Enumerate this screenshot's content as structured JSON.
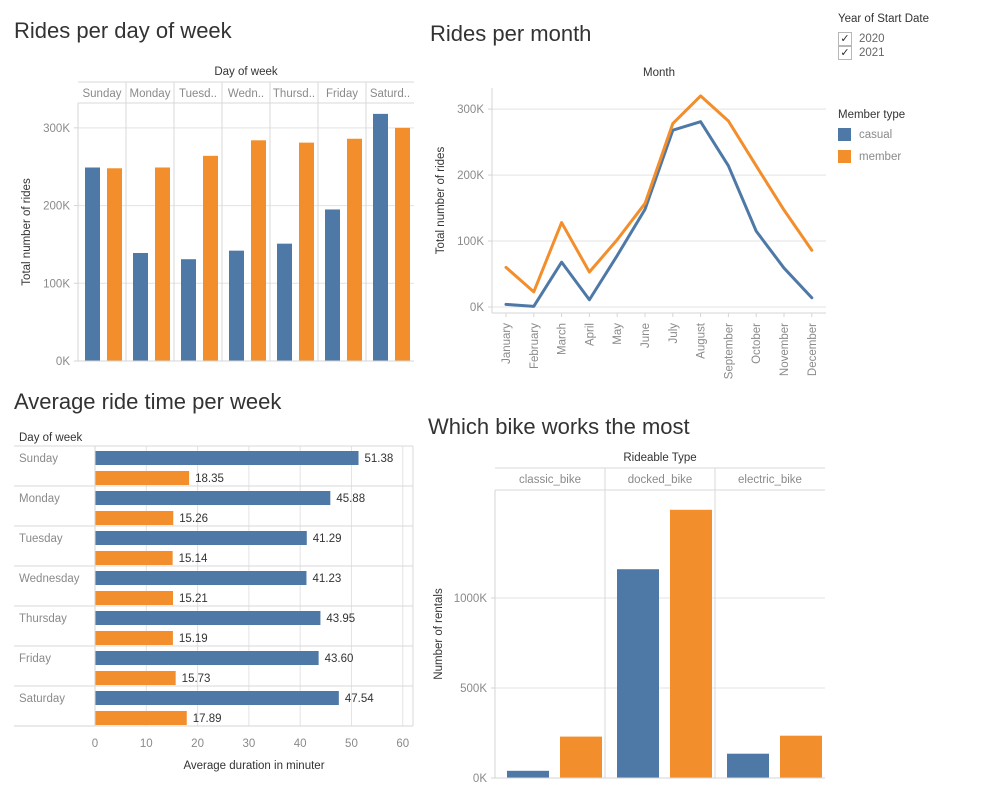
{
  "colors": {
    "casual": "#4e79a7",
    "member": "#f28e2b",
    "title_text": "#333333",
    "field_label": "#333333",
    "axis_text": "#8a8a8a",
    "value_label": "#333333",
    "grid": "#e3e3e3",
    "axis_line": "#d5d5d5",
    "divider": "#d8d8d8",
    "checkbox_border": "#b7b7b7"
  },
  "icons": {
    "checkbox_checked": "✓"
  },
  "legend_year": {
    "title": "Year of Start Date",
    "items": [
      {
        "label": "2020",
        "checked": true
      },
      {
        "label": "2021",
        "checked": true
      }
    ]
  },
  "legend_member": {
    "title": "Member type",
    "items": [
      {
        "label": "casual",
        "color_key": "casual"
      },
      {
        "label": "member",
        "color_key": "member"
      }
    ]
  },
  "chart_data": [
    {
      "id": "rides_per_day",
      "type": "bar",
      "title": "Rides per day of week",
      "column_field_label": "Day of week",
      "ylabel": "Total number of rides",
      "categories": [
        "Sunday",
        "Monday",
        "Tuesd..",
        "Wedn..",
        "Thursd..",
        "Friday",
        "Saturd.."
      ],
      "series": [
        {
          "name": "casual",
          "values": [
            249000,
            139000,
            131000,
            142000,
            151000,
            195000,
            318000
          ]
        },
        {
          "name": "member",
          "values": [
            248000,
            249000,
            264000,
            284000,
            281000,
            286000,
            300000
          ]
        }
      ],
      "yticks": [
        {
          "label": "0K",
          "value": 0
        },
        {
          "label": "100K",
          "value": 100000
        },
        {
          "label": "200K",
          "value": 200000
        },
        {
          "label": "300K",
          "value": 300000
        }
      ],
      "ylim": [
        0,
        332000
      ],
      "grid": true,
      "legend_position": "right"
    },
    {
      "id": "rides_per_month",
      "type": "line",
      "title": "Rides per month",
      "column_field_label": "Month",
      "ylabel": "Total number of rides",
      "x": [
        "January",
        "February",
        "March",
        "April",
        "May",
        "June",
        "July",
        "August",
        "September",
        "October",
        "November",
        "December"
      ],
      "series": [
        {
          "name": "casual",
          "values": [
            4000,
            1000,
            68000,
            11000,
            78000,
            148000,
            268000,
            281000,
            214000,
            115000,
            59000,
            14000
          ]
        },
        {
          "name": "member",
          "values": [
            60000,
            23000,
            128000,
            53000,
            102000,
            157000,
            278000,
            320000,
            282000,
            214000,
            147000,
            86000
          ]
        }
      ],
      "yticks": [
        {
          "label": "0K",
          "value": 0
        },
        {
          "label": "100K",
          "value": 100000
        },
        {
          "label": "200K",
          "value": 200000
        },
        {
          "label": "300K",
          "value": 300000
        }
      ],
      "ylim": [
        0,
        332000
      ],
      "grid": true
    },
    {
      "id": "avg_ride_time",
      "type": "bar-horizontal",
      "title": "Average ride time per week",
      "row_field_label": "Day of week",
      "xlabel": "Average duration in minuter",
      "categories": [
        "Sunday",
        "Monday",
        "Tuesday",
        "Wednesday",
        "Thursday",
        "Friday",
        "Saturday"
      ],
      "series": [
        {
          "name": "casual",
          "values": [
            51.38,
            45.88,
            41.29,
            41.23,
            43.95,
            43.6,
            47.54
          ]
        },
        {
          "name": "member",
          "values": [
            18.35,
            15.26,
            15.14,
            15.21,
            15.19,
            15.73,
            17.89
          ]
        }
      ],
      "xticks": [
        0,
        10,
        20,
        30,
        40,
        50,
        60
      ],
      "xlim": [
        0,
        62
      ],
      "value_labels": true,
      "grid": true
    },
    {
      "id": "bike_type",
      "type": "bar",
      "title": "Which bike works the most",
      "column_field_label": "Rideable Type",
      "ylabel": "Number of rentals",
      "categories": [
        "classic_bike",
        "docked_bike",
        "electric_bike"
      ],
      "series": [
        {
          "name": "casual",
          "values": [
            40000,
            1160000,
            135000
          ]
        },
        {
          "name": "member",
          "values": [
            230000,
            1490000,
            235000
          ]
        }
      ],
      "yticks": [
        {
          "label": "0K",
          "value": 0
        },
        {
          "label": "500K",
          "value": 500000
        },
        {
          "label": "1000K",
          "value": 1000000
        }
      ],
      "ylim": [
        0,
        1600000
      ],
      "grid": true
    }
  ]
}
